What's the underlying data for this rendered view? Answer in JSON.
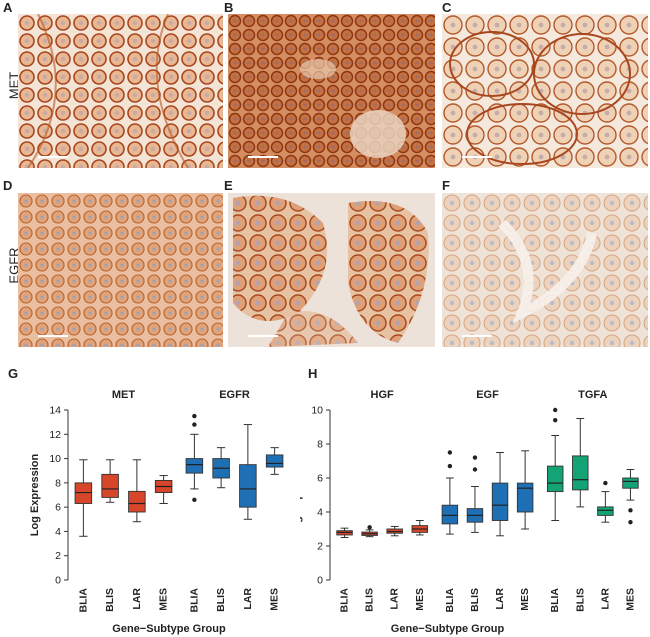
{
  "panel_letters": {
    "A": "A",
    "B": "B",
    "C": "C",
    "D": "D",
    "E": "E",
    "F": "F",
    "G": "G",
    "H": "H"
  },
  "row_labels": {
    "met": "MET",
    "egfr": "EGFR"
  },
  "colors": {
    "red": "#D7452B",
    "blue": "#1F6FB5",
    "green": "#13A374",
    "stain": "#B5532A",
    "background_stain": "#F2E6DC"
  },
  "chart_data": [
    {
      "type": "box",
      "panel": "G",
      "ylabel": "Log Expression",
      "xlabel": "Gene−Subtype Group",
      "ylim": [
        0,
        14
      ],
      "yticks": [
        0,
        2,
        4,
        6,
        8,
        10,
        12,
        14
      ],
      "categories": [
        "BLIA",
        "BLIS",
        "LAR",
        "MES"
      ],
      "groups": [
        {
          "name": "MET",
          "color": "#D7452B",
          "boxes": [
            {
              "category": "BLIA",
              "min": 3.6,
              "q1": 6.3,
              "median": 7.2,
              "q3": 8.0,
              "max": 9.9,
              "outliers": []
            },
            {
              "category": "BLIS",
              "min": 6.4,
              "q1": 6.8,
              "median": 7.5,
              "q3": 8.7,
              "max": 9.9,
              "outliers": []
            },
            {
              "category": "LAR",
              "min": 4.8,
              "q1": 5.6,
              "median": 6.3,
              "q3": 7.3,
              "max": 9.9,
              "outliers": []
            },
            {
              "category": "MES",
              "min": 6.3,
              "q1": 7.2,
              "median": 7.7,
              "q3": 8.2,
              "max": 8.6,
              "outliers": []
            }
          ]
        },
        {
          "name": "EGFR",
          "color": "#1F6FB5",
          "boxes": [
            {
              "category": "BLIA",
              "min": 7.5,
              "q1": 8.8,
              "median": 9.5,
              "q3": 10.0,
              "max": 12.0,
              "outliers": [
                6.6,
                12.8,
                13.5
              ]
            },
            {
              "category": "BLIS",
              "min": 7.6,
              "q1": 8.4,
              "median": 9.2,
              "q3": 10.0,
              "max": 10.9,
              "outliers": []
            },
            {
              "category": "LAR",
              "min": 5.0,
              "q1": 6.0,
              "median": 7.5,
              "q3": 9.5,
              "max": 12.8,
              "outliers": []
            },
            {
              "category": "MES",
              "min": 8.7,
              "q1": 9.3,
              "median": 9.6,
              "q3": 10.3,
              "max": 10.9,
              "outliers": []
            }
          ]
        }
      ]
    },
    {
      "type": "box",
      "panel": "H",
      "ylabel": "Log Expression",
      "xlabel": "Gene−Subtype Group",
      "ylim": [
        0,
        10
      ],
      "yticks": [
        0,
        2,
        4,
        6,
        8,
        10
      ],
      "categories": [
        "BLIA",
        "BLIS",
        "LAR",
        "MES"
      ],
      "groups": [
        {
          "name": "HGF",
          "color": "#D7452B",
          "boxes": [
            {
              "category": "BLIA",
              "min": 2.5,
              "q1": 2.65,
              "median": 2.8,
              "q3": 2.9,
              "max": 3.05,
              "outliers": []
            },
            {
              "category": "BLIS",
              "min": 2.55,
              "q1": 2.62,
              "median": 2.72,
              "q3": 2.82,
              "max": 2.95,
              "outliers": [
                3.1
              ]
            },
            {
              "category": "LAR",
              "min": 2.6,
              "q1": 2.75,
              "median": 2.85,
              "q3": 3.0,
              "max": 3.15,
              "outliers": []
            },
            {
              "category": "MES",
              "min": 2.65,
              "q1": 2.8,
              "median": 3.0,
              "q3": 3.2,
              "max": 3.5,
              "outliers": []
            }
          ]
        },
        {
          "name": "EGF",
          "color": "#1F6FB5",
          "boxes": [
            {
              "category": "BLIA",
              "min": 2.7,
              "q1": 3.3,
              "median": 3.8,
              "q3": 4.4,
              "max": 6.0,
              "outliers": [
                6.7,
                7.5
              ]
            },
            {
              "category": "BLIS",
              "min": 2.8,
              "q1": 3.4,
              "median": 3.8,
              "q3": 4.2,
              "max": 5.5,
              "outliers": [
                6.5,
                7.2
              ]
            },
            {
              "category": "LAR",
              "min": 2.6,
              "q1": 3.5,
              "median": 4.4,
              "q3": 5.7,
              "max": 7.5,
              "outliers": []
            },
            {
              "category": "MES",
              "min": 3.0,
              "q1": 4.0,
              "median": 5.4,
              "q3": 5.7,
              "max": 7.6,
              "outliers": []
            }
          ]
        },
        {
          "name": "TGFA",
          "color": "#13A374",
          "boxes": [
            {
              "category": "BLIA",
              "min": 3.5,
              "q1": 5.2,
              "median": 5.7,
              "q3": 6.7,
              "max": 8.5,
              "outliers": [
                9.4,
                10.0
              ]
            },
            {
              "category": "BLIS",
              "min": 4.3,
              "q1": 5.3,
              "median": 5.9,
              "q3": 7.3,
              "max": 9.5,
              "outliers": []
            },
            {
              "category": "LAR",
              "min": 3.4,
              "q1": 3.8,
              "median": 4.1,
              "q3": 4.3,
              "max": 5.2,
              "outliers": [
                5.7
              ]
            },
            {
              "category": "MES",
              "min": 4.7,
              "q1": 5.4,
              "median": 5.8,
              "q3": 6.0,
              "max": 6.5,
              "outliers": [
                3.4,
                4.1
              ]
            }
          ]
        }
      ]
    }
  ]
}
